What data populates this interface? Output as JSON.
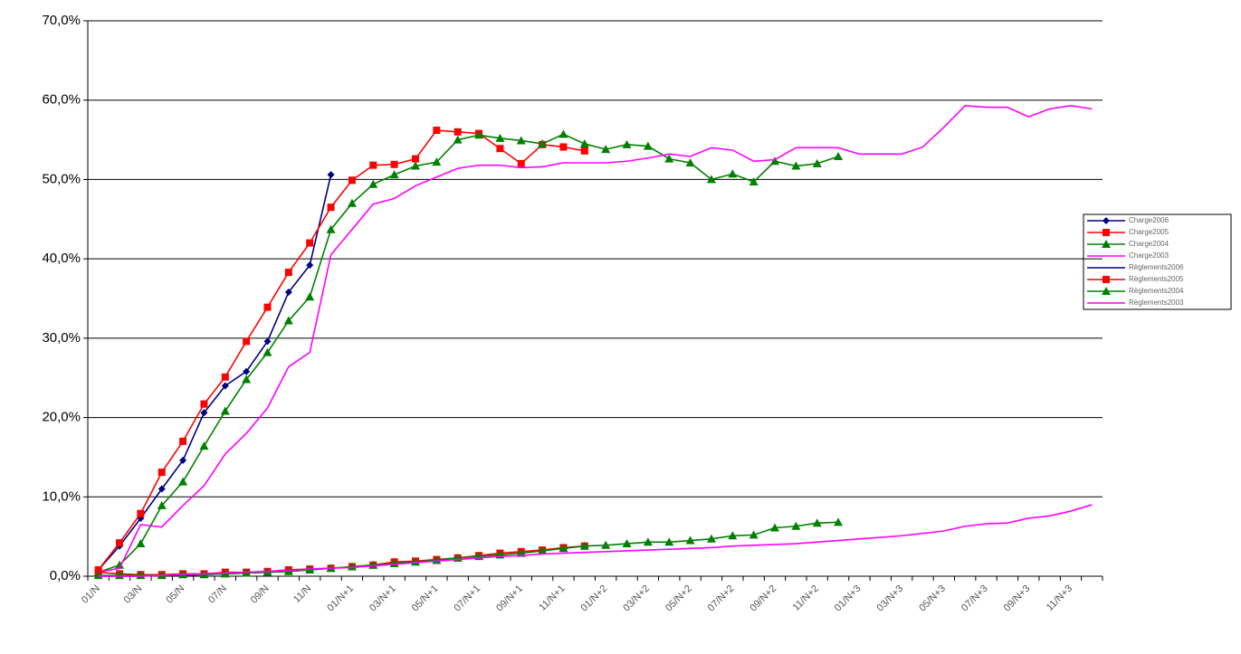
{
  "chart_data": {
    "type": "line",
    "categories": [
      "01/N",
      null,
      "03/N",
      null,
      "05/N",
      null,
      "07/N",
      null,
      "09/N",
      null,
      "11/N",
      null,
      "01/N+1",
      null,
      "03/N+1",
      null,
      "05/N+1",
      null,
      "07/N+1",
      null,
      "09/N+1",
      null,
      "11/N+1",
      null,
      "01/N+2",
      null,
      "03/N+2",
      null,
      "05/N+2",
      null,
      "07/N+2",
      null,
      "09/N+2",
      null,
      "11/N+2",
      null,
      "01/N+3",
      null,
      "03/N+3",
      null,
      "05/N+3",
      null,
      "07/N+3",
      null,
      "09/N+3",
      null,
      "11/N+3",
      null
    ],
    "ylim": [
      0,
      70
    ],
    "yticks": [
      {
        "value": 0,
        "label": "0,0%"
      },
      {
        "value": 10,
        "label": "10,0%"
      },
      {
        "value": 20,
        "label": "20,0%"
      },
      {
        "value": 30,
        "label": "30,0%"
      },
      {
        "value": 40,
        "label": "40,0%"
      },
      {
        "value": 50,
        "label": "50,0%"
      },
      {
        "value": 60,
        "label": "60,0%"
      },
      {
        "value": 70,
        "label": "70,0%"
      }
    ],
    "grid": true,
    "legend": "right",
    "series": [
      {
        "name": "Charge2006",
        "color": "#000080",
        "marker": "diamond",
        "values": [
          0.8,
          3.8,
          7.3,
          11,
          14.6,
          20.6,
          24,
          25.8,
          29.6,
          35.8,
          39.2,
          50.6,
          null,
          null,
          null,
          null,
          null,
          null,
          null,
          null,
          null,
          null,
          null,
          null,
          null,
          null,
          null,
          null,
          null,
          null,
          null,
          null,
          null,
          null,
          null,
          null,
          null,
          null,
          null,
          null,
          null,
          null,
          null,
          null,
          null,
          null,
          null,
          null
        ]
      },
      {
        "name": "Charge2005",
        "color": "#ff0000",
        "marker": "square",
        "values": [
          0.8,
          4.2,
          7.9,
          13.1,
          17,
          21.7,
          25.1,
          29.6,
          33.9,
          38.3,
          42,
          46.5,
          49.9,
          51.8,
          51.9,
          52.6,
          56.2,
          56,
          55.8,
          53.9,
          52,
          54.4,
          54.1,
          53.6,
          null,
          null,
          null,
          null,
          null,
          null,
          null,
          null,
          null,
          null,
          null,
          null,
          null,
          null,
          null,
          null,
          null,
          null,
          null,
          null,
          null,
          null,
          null,
          null
        ]
      },
      {
        "name": "Charge2004",
        "color": "#008000",
        "marker": "triangle",
        "values": [
          0.5,
          1.4,
          4.1,
          8.9,
          11.9,
          16.4,
          20.8,
          24.8,
          28.2,
          32.2,
          35.2,
          43.7,
          47,
          49.4,
          50.6,
          51.7,
          52.2,
          55,
          55.6,
          55.2,
          54.9,
          54.5,
          55.7,
          54.5,
          53.8,
          54.4,
          54.2,
          52.6,
          52.1,
          50,
          50.7,
          49.7,
          52.3,
          51.7,
          52,
          52.9,
          null,
          null,
          null,
          null,
          null,
          null,
          null,
          null,
          null,
          null,
          null,
          null
        ]
      },
      {
        "name": "Charge2003",
        "color": "#ff00ff",
        "marker": "none",
        "values": [
          0.5,
          1,
          6.5,
          6.2,
          8.9,
          11.4,
          15.4,
          18,
          21.2,
          26.4,
          28.2,
          40.5,
          43.7,
          46.9,
          47.6,
          49.2,
          50.3,
          51.4,
          51.8,
          51.8,
          51.5,
          51.6,
          52.1,
          52.1,
          52.1,
          52.3,
          52.7,
          53.2,
          52.9,
          54,
          53.7,
          52.3,
          52.5,
          54,
          54,
          54,
          53.2,
          53.2,
          53.2,
          54.1,
          56.6,
          59.3,
          59.1,
          59.1,
          57.9,
          58.9,
          59.3,
          58.9
        ]
      },
      {
        "name": "Règlements2006",
        "color": "#000080",
        "marker": "none",
        "values": [
          0,
          0,
          0,
          0.1,
          0.1,
          0.2,
          0.3,
          0.4,
          0.5,
          0.6,
          0.8,
          1.0,
          null,
          null,
          null,
          null,
          null,
          null,
          null,
          null,
          null,
          null,
          null,
          null,
          null,
          null,
          null,
          null,
          null,
          null,
          null,
          null,
          null,
          null,
          null,
          null,
          null,
          null,
          null,
          null,
          null,
          null,
          null,
          null,
          null,
          null,
          null,
          null
        ]
      },
      {
        "name": "Règlements2005",
        "color": "#ff0000",
        "marker": "square",
        "values": [
          0.5,
          0.3,
          0.2,
          0.2,
          0.3,
          0.3,
          0.5,
          0.5,
          0.6,
          0.8,
          0.9,
          1.0,
          1.2,
          1.4,
          1.8,
          1.9,
          2.1,
          2.3,
          2.6,
          2.9,
          3.1,
          3.3,
          3.6,
          3.8,
          null,
          null,
          null,
          null,
          null,
          null,
          null,
          null,
          null,
          null,
          null,
          null,
          null,
          null,
          null,
          null,
          null,
          null,
          null,
          null,
          null,
          null,
          null,
          null
        ]
      },
      {
        "name": "Règlements2004",
        "color": "#008000",
        "marker": "triangle",
        "values": [
          0.1,
          0.1,
          0.1,
          0.1,
          0.2,
          0.2,
          0.3,
          0.4,
          0.5,
          0.6,
          0.8,
          1.0,
          1.2,
          1.4,
          1.6,
          1.8,
          2.0,
          2.3,
          2.5,
          2.7,
          2.9,
          3.2,
          3.5,
          3.8,
          3.9,
          4.1,
          4.3,
          4.3,
          4.5,
          4.7,
          5.1,
          5.2,
          6.1,
          6.3,
          6.7,
          6.8,
          null,
          null,
          null,
          null,
          null,
          null,
          null,
          null,
          null,
          null,
          null,
          null
        ]
      },
      {
        "name": "Règlements2003",
        "color": "#ff00ff",
        "marker": "none",
        "values": [
          0,
          0,
          0,
          0.1,
          0.2,
          0.3,
          0.4,
          0.5,
          0.6,
          0.7,
          0.9,
          1.0,
          1.1,
          1.3,
          1.5,
          1.7,
          1.9,
          2.1,
          2.3,
          2.5,
          2.6,
          2.8,
          2.9,
          3.0,
          3.1,
          3.2,
          3.3,
          3.4,
          3.5,
          3.6,
          3.8,
          3.9,
          4.0,
          4.1,
          4.3,
          4.5,
          4.7,
          4.9,
          5.1,
          5.4,
          5.7,
          6.3,
          6.6,
          6.7,
          7.3,
          7.6,
          8.2,
          9.0
        ]
      }
    ]
  }
}
